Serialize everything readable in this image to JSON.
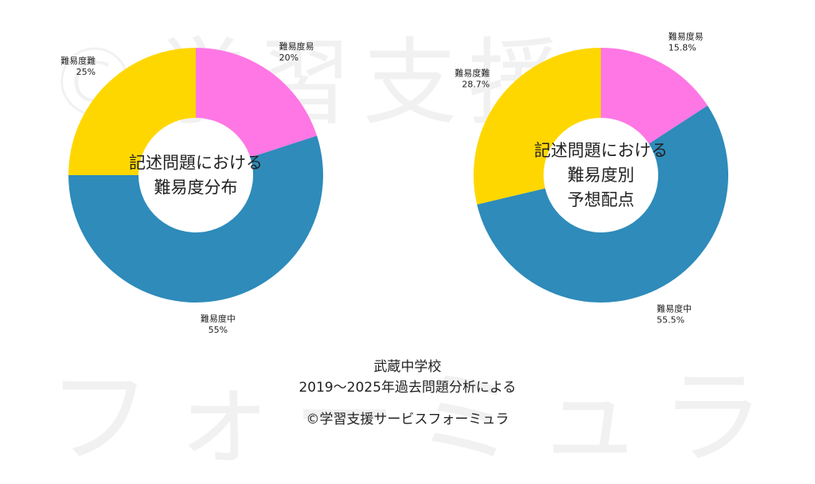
{
  "watermark": {
    "line1": "©学習支援",
    "line2": "フォーミュラ"
  },
  "colors": {
    "easy": "#FF77E5",
    "medium": "#2E8BBA",
    "hard": "#FFD700",
    "background": "#FFFFFF"
  },
  "chart_data": [
    {
      "type": "pie",
      "donut": true,
      "center_text": [
        "記述問題における",
        "難易度分布"
      ],
      "slices": [
        {
          "name": "難易度易",
          "value": 20,
          "value_label": "20%",
          "color": "#FF77E5"
        },
        {
          "name": "難易度中",
          "value": 55,
          "value_label": "55%",
          "color": "#2E8BBA"
        },
        {
          "name": "難易度難",
          "value": 25,
          "value_label": "25%",
          "color": "#FFD700"
        }
      ]
    },
    {
      "type": "pie",
      "donut": true,
      "center_text": [
        "記述問題における",
        "難易度別",
        "予想配点"
      ],
      "slices": [
        {
          "name": "難易度易",
          "value": 15.8,
          "value_label": "15.8%",
          "color": "#FF77E5"
        },
        {
          "name": "難易度中",
          "value": 55.5,
          "value_label": "55.5%",
          "color": "#2E8BBA"
        },
        {
          "name": "難易度難",
          "value": 28.7,
          "value_label": "28.7%",
          "color": "#FFD700"
        }
      ]
    }
  ],
  "footer": {
    "school": "武蔵中学校",
    "source": "2019～2025年過去問題分析による",
    "copyright": "©学習支援サービスフォーミュラ"
  }
}
